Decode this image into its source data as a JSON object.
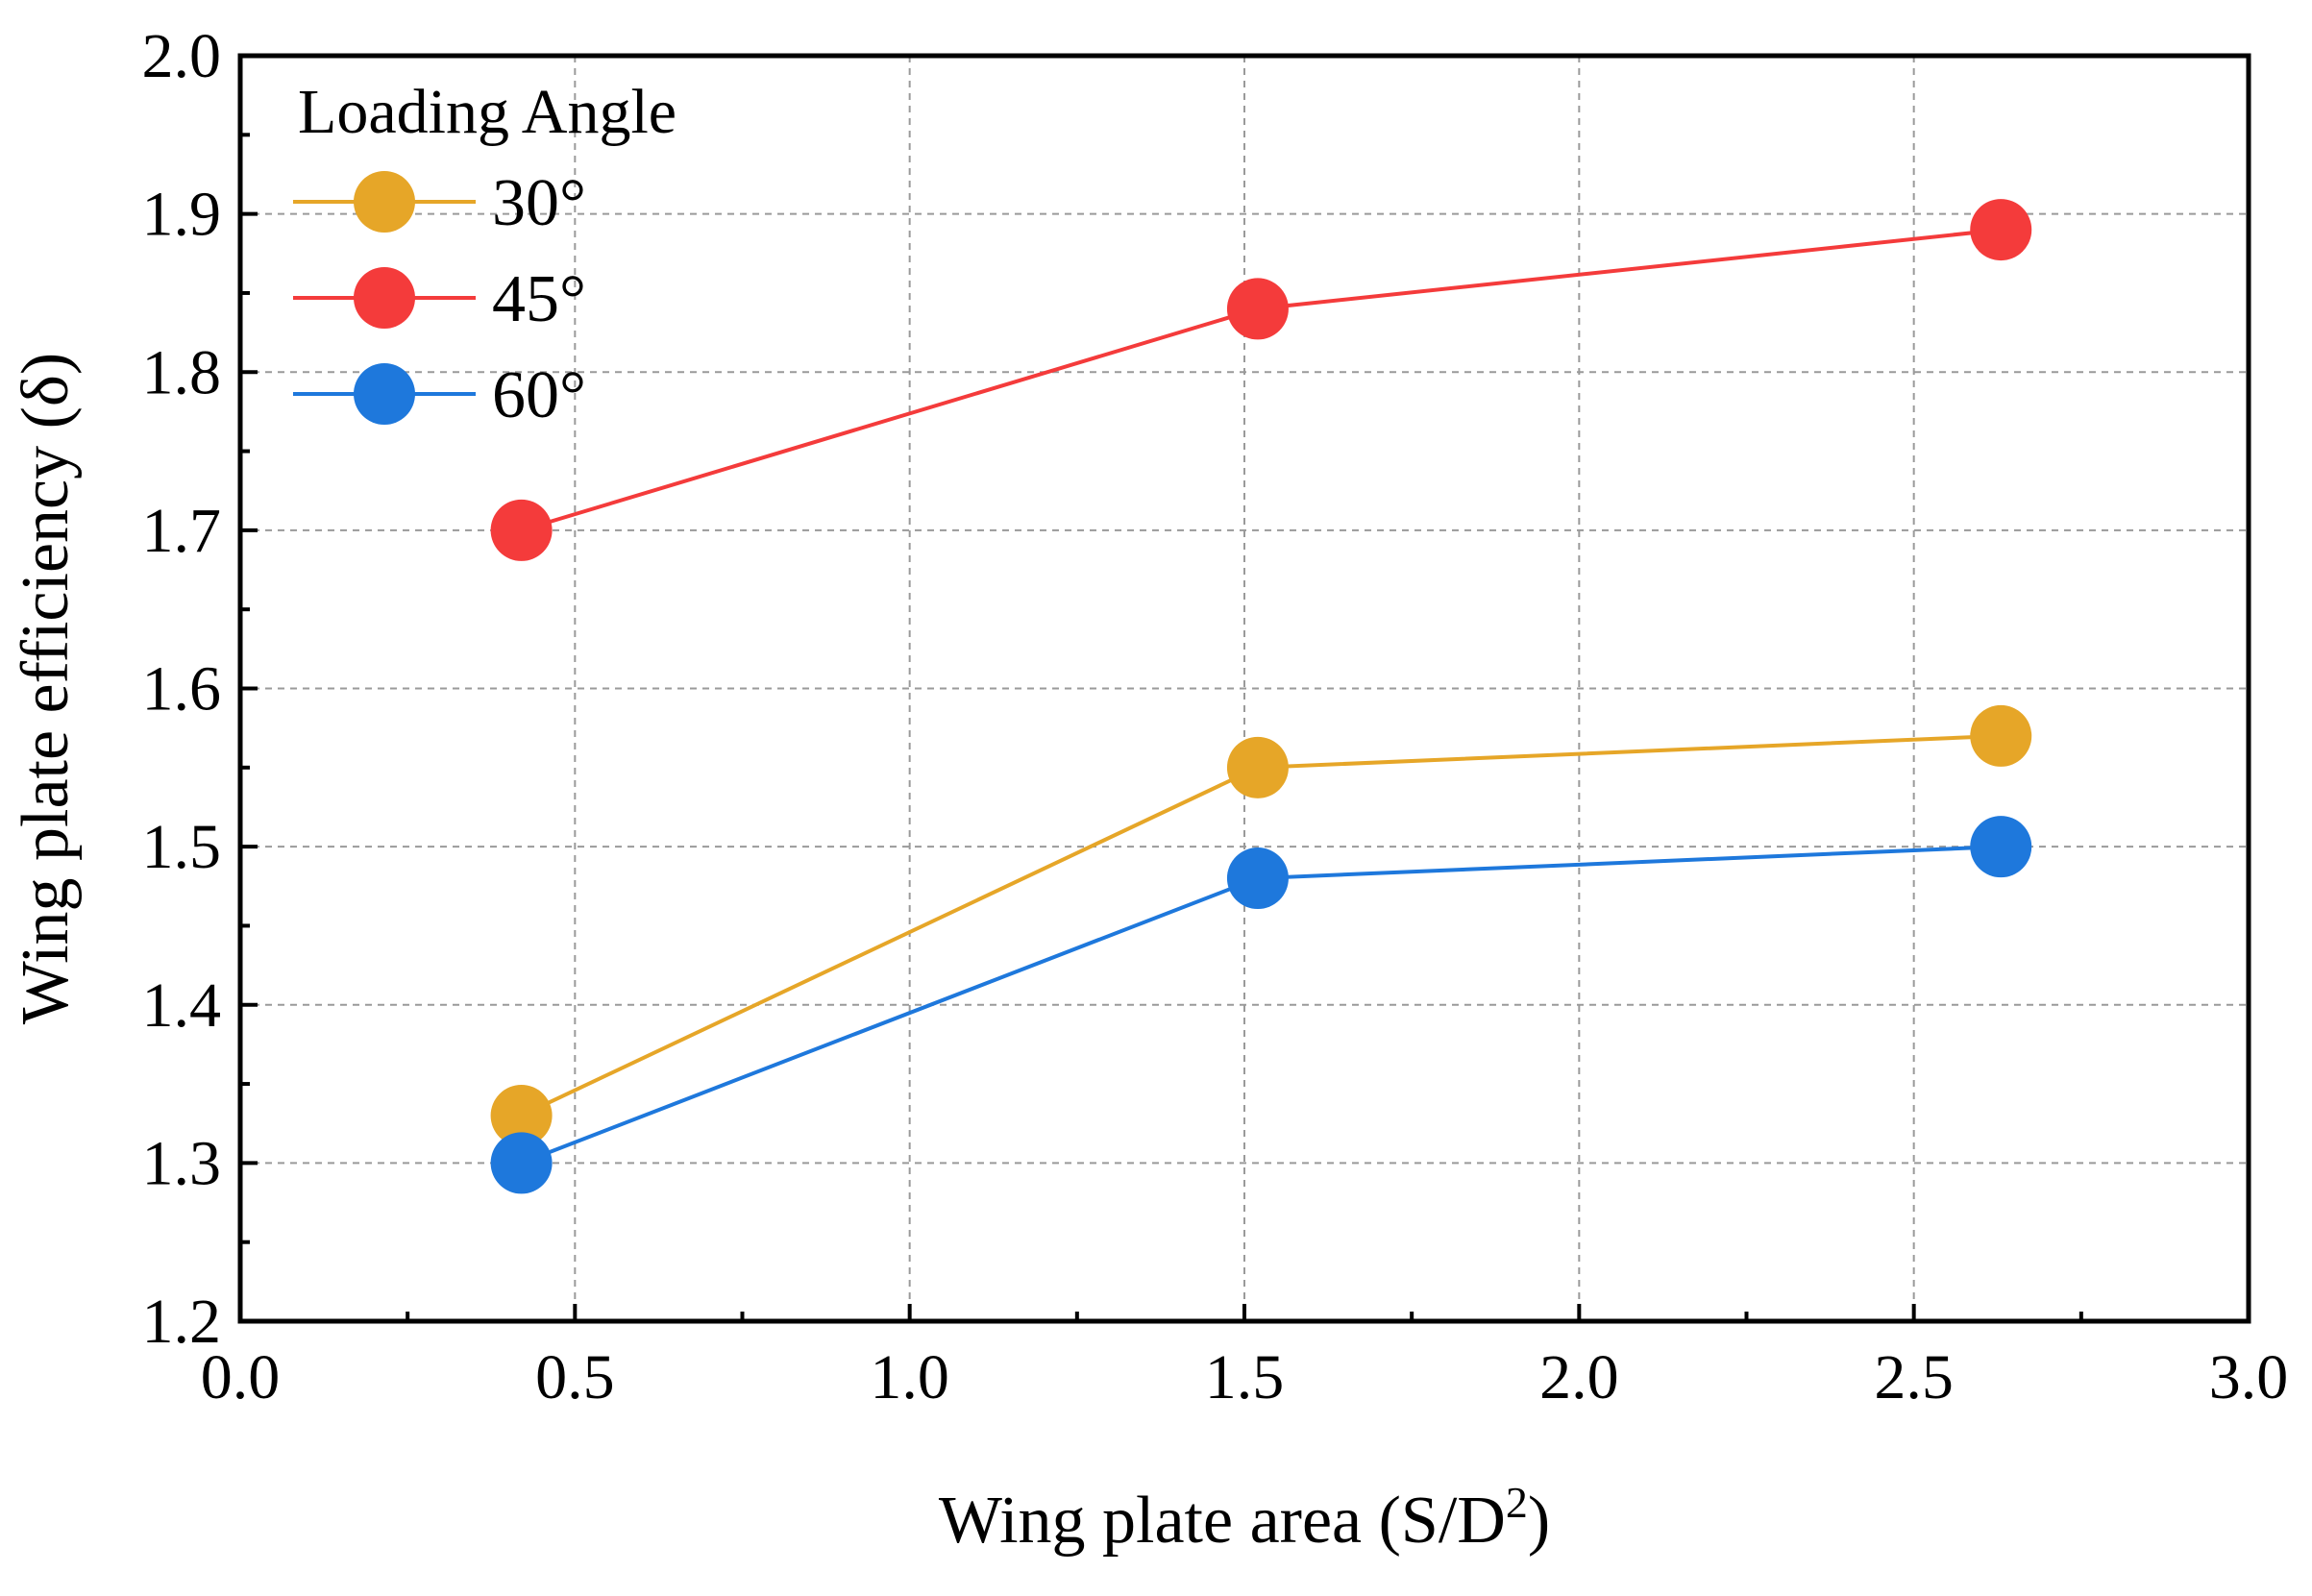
{
  "chart_data": {
    "type": "line",
    "xlabel": "Wing plate area (S/D",
    "xlabel_superscript": "2",
    "xlabel_suffix": ")",
    "ylabel": "Wing plate efficiency (δ)",
    "xlim": [
      0.0,
      3.0
    ],
    "ylim": [
      1.2,
      2.0
    ],
    "xticks": [
      0.0,
      0.5,
      1.0,
      1.5,
      2.0,
      2.5,
      3.0
    ],
    "xtick_labels": [
      "0.0",
      "0.5",
      "1.0",
      "1.5",
      "2.0",
      "2.5",
      "3.0"
    ],
    "yticks": [
      1.2,
      1.3,
      1.4,
      1.5,
      1.6,
      1.7,
      1.8,
      1.9,
      2.0
    ],
    "ytick_labels": [
      "1.2",
      "1.3",
      "1.4",
      "1.5",
      "1.6",
      "1.7",
      "1.8",
      "1.9",
      "2.0"
    ],
    "grid": true,
    "legend": {
      "title": "Loading Angle",
      "position": "top-left"
    },
    "x": [
      0.42,
      1.52,
      2.63
    ],
    "series": [
      {
        "name": "30°",
        "color": "#E6A628",
        "values": [
          1.33,
          1.55,
          1.57
        ]
      },
      {
        "name": "45°",
        "color": "#F43B3B",
        "values": [
          1.7,
          1.84,
          1.89
        ]
      },
      {
        "name": "60°",
        "color": "#1E78DC",
        "values": [
          1.3,
          1.48,
          1.5
        ]
      }
    ]
  }
}
